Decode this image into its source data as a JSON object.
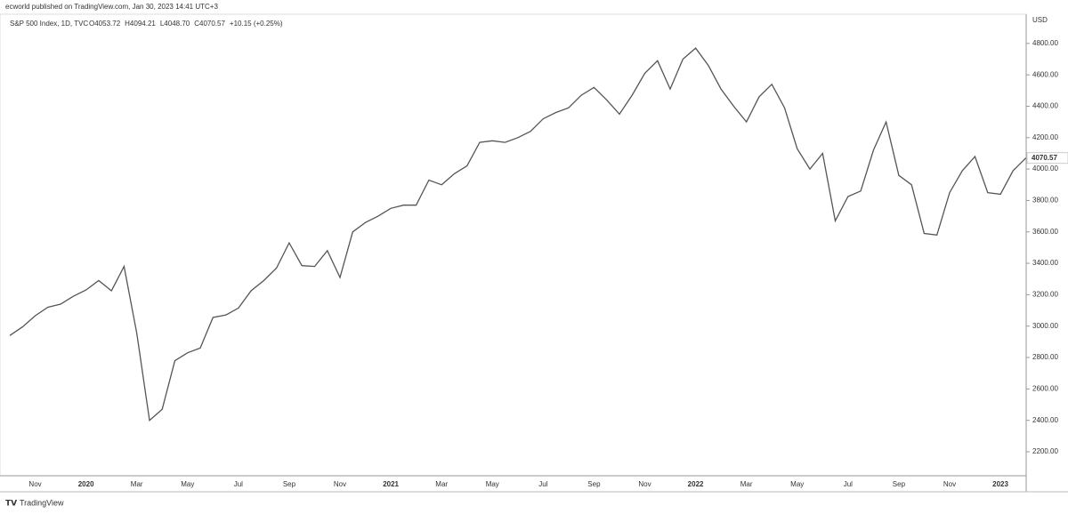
{
  "chart_data": {
    "type": "line",
    "byline": "ecworld published on TradingView.com, Jan 30, 2023 14:41 UTC+3",
    "title": "S&P 500 Index, 1D, TVC",
    "legend_values": [
      "O4053.72",
      "H4094.21",
      "L4048.70",
      "C4070.57",
      "+10.15 (+0.25%)"
    ],
    "y_axis_label": "USD",
    "footer": "TradingView",
    "color": "#555555",
    "categories": [
      null,
      null,
      "Nov",
      null,
      null,
      null,
      "2020",
      null,
      null,
      null,
      "Mar",
      null,
      null,
      null,
      "May",
      null,
      null,
      null,
      "Jul",
      null,
      null,
      null,
      "Sep",
      null,
      null,
      null,
      "Nov",
      null,
      null,
      null,
      "2021",
      null,
      null,
      null,
      "Mar",
      null,
      null,
      null,
      "May",
      null,
      null,
      null,
      "Jul",
      null,
      null,
      null,
      "Sep",
      null,
      null,
      null,
      "Nov",
      null,
      null,
      null,
      "2022",
      null,
      null,
      null,
      "Mar",
      null,
      null,
      null,
      "May",
      null,
      null,
      null,
      "Jul",
      null,
      null,
      null,
      "Sep",
      null,
      null,
      null,
      "Nov",
      null,
      null,
      null,
      "2023",
      null,
      null
    ],
    "values": [
      2940,
      2995,
      3066,
      3120,
      3140,
      3190,
      3230,
      3290,
      3225,
      3380,
      2954,
      2400,
      2470,
      2780,
      2830,
      2860,
      3055,
      3070,
      3115,
      3225,
      3290,
      3370,
      3530,
      3385,
      3380,
      3480,
      3310,
      3600,
      3660,
      3700,
      3750,
      3770,
      3770,
      3930,
      3900,
      3970,
      4020,
      4170,
      4180,
      4170,
      4200,
      4240,
      4320,
      4360,
      4390,
      4470,
      4520,
      4440,
      4350,
      4470,
      4610,
      4690,
      4510,
      4700,
      4770,
      4660,
      4510,
      4400,
      4300,
      4460,
      4540,
      4390,
      4130,
      4000,
      4100,
      3670,
      3825,
      3860,
      4120,
      4300,
      3960,
      3900,
      3590,
      3580,
      3850,
      3990,
      4080,
      3850,
      3840,
      3990,
      4070.57
    ],
    "ylim": [
      2047,
      4986
    ],
    "yticks": [
      {
        "value": 2200,
        "label": "2200.00"
      },
      {
        "value": 2400,
        "label": "2400.00"
      },
      {
        "value": 2600,
        "label": "2600.00"
      },
      {
        "value": 2800,
        "label": "2800.00"
      },
      {
        "value": 3000,
        "label": "3000.00"
      },
      {
        "value": 3200,
        "label": "3200.00"
      },
      {
        "value": 3400,
        "label": "3400.00"
      },
      {
        "value": 3600,
        "label": "3600.00"
      },
      {
        "value": 3800,
        "label": "3800.00"
      },
      {
        "value": 4000,
        "label": "4000.00"
      },
      {
        "value": 4200,
        "label": "4200.00"
      },
      {
        "value": 4400,
        "label": "4400.00"
      },
      {
        "value": 4600,
        "label": "4600.00"
      },
      {
        "value": 4800,
        "label": "4800.00"
      }
    ],
    "grid": false
  }
}
